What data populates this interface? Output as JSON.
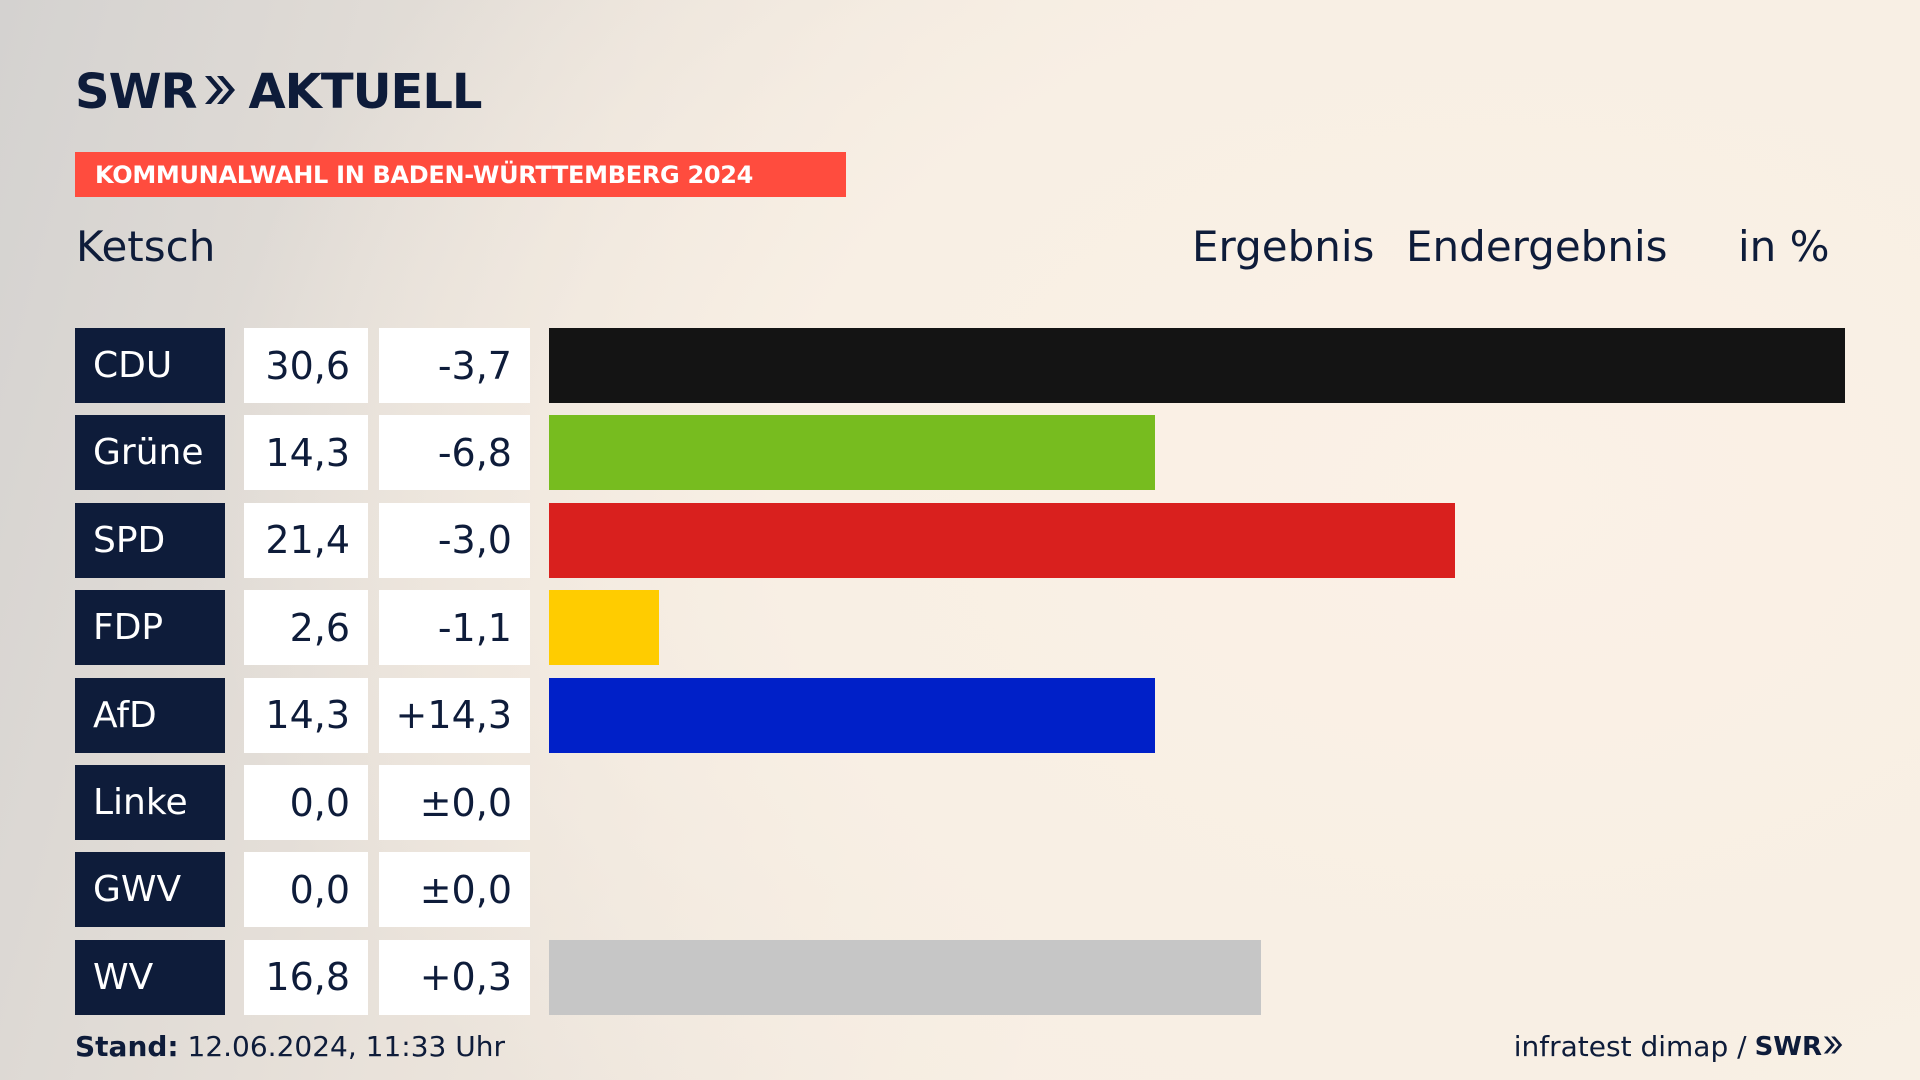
{
  "brand": {
    "swr": "SWR",
    "aktuell": "AKTUELL"
  },
  "banner": "KOMMUNALWAHL IN BADEN-WÜRTTEMBERG 2024",
  "place": "Ketsch",
  "headers": {
    "ergebnis": "Ergebnis",
    "endergebnis": "Endergebnis",
    "unit": "in %"
  },
  "footer": {
    "stand_label": "Stand:",
    "stand_value": " 12.06.2024, 11:33 Uhr",
    "source": "infratest dimap /",
    "source_brand": "SWR"
  },
  "colors": {
    "navy": "#0e1c3a",
    "banner": "#ff4c3e"
  },
  "chart_data": {
    "type": "bar",
    "orientation": "horizontal",
    "categories": [
      "CDU",
      "Grüne",
      "SPD",
      "FDP",
      "AfD",
      "Linke",
      "GWV",
      "WV"
    ],
    "values": [
      30.6,
      14.3,
      21.4,
      2.6,
      14.3,
      0.0,
      0.0,
      16.8
    ],
    "value_labels": [
      "30,6",
      "14,3",
      "21,4",
      "2,6",
      "14,3",
      "0,0",
      "0,0",
      "16,8"
    ],
    "diff_labels": [
      "-3,7",
      "-6,8",
      "-3,0",
      "-1,1",
      "+14,3",
      "±0,0",
      "±0,0",
      "+0,3"
    ],
    "colors": [
      "#141414",
      "#77bc1f",
      "#d9201e",
      "#ffcc00",
      "#0020c8",
      "#b0004f",
      "#9a9a9a",
      "#c6c6c6"
    ],
    "xlim": [
      0,
      30.6
    ],
    "grid": false,
    "legend": "none"
  }
}
